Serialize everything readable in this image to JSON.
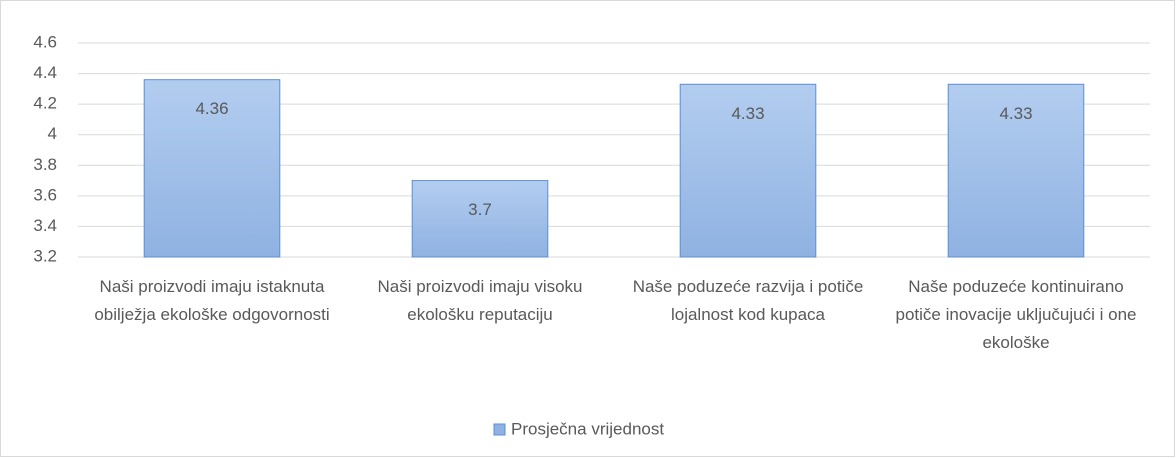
{
  "chart_data": {
    "type": "bar",
    "categories": [
      "Naši proizvodi imaju istaknuta obilježja ekološke odgovornosti",
      "Naši proizvodi imaju visoku ekološku reputaciju",
      "Naše poduzeće razvija i potiče lojalnost kod kupaca",
      "Naše poduzeće kontinuirano potiče inovacije uključujući i one ekološke"
    ],
    "series": [
      {
        "name": "Prosječna vrijednost",
        "color": "#8fb2e2",
        "values": [
          4.36,
          3.7,
          4.33,
          4.33
        ]
      }
    ],
    "ylim": [
      3.2,
      4.6
    ],
    "yticks": [
      3.2,
      3.4,
      3.6,
      3.8,
      4,
      4.2,
      4.4,
      4.6
    ],
    "grid": true,
    "legend": "bottom"
  }
}
